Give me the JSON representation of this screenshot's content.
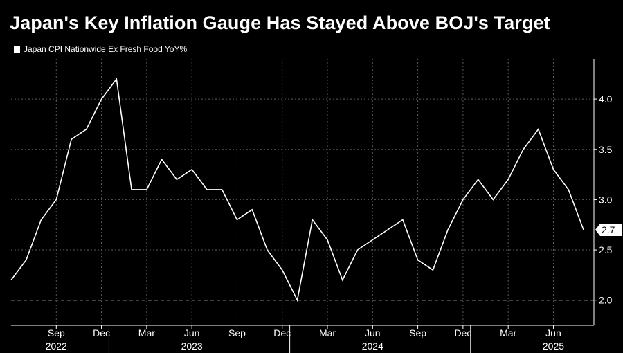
{
  "chart_data": {
    "type": "line",
    "title": "Japan's Key Inflation Gauge Has Stayed Above BOJ's Target",
    "series": [
      {
        "name": "Japan CPI Nationwide Ex Fresh Food YoY%",
        "x": [
          "2022-06",
          "2022-07",
          "2022-08",
          "2022-09",
          "2022-10",
          "2022-11",
          "2022-12",
          "2023-01",
          "2023-02",
          "2023-03",
          "2023-04",
          "2023-05",
          "2023-06",
          "2023-07",
          "2023-08",
          "2023-09",
          "2023-10",
          "2023-11",
          "2023-12",
          "2024-01",
          "2024-02",
          "2024-03",
          "2024-04",
          "2024-05",
          "2024-06",
          "2024-07",
          "2024-08",
          "2024-09",
          "2024-10",
          "2024-11",
          "2024-12",
          "2025-01",
          "2025-02",
          "2025-03",
          "2025-04",
          "2025-05",
          "2025-06",
          "2025-07",
          "2025-08"
        ],
        "values": [
          2.2,
          2.4,
          2.8,
          3.0,
          3.6,
          3.7,
          4.0,
          4.2,
          3.1,
          3.1,
          3.4,
          3.2,
          3.3,
          3.1,
          3.1,
          2.8,
          2.9,
          2.5,
          2.3,
          2.0,
          2.8,
          2.6,
          2.2,
          2.5,
          2.6,
          2.7,
          2.8,
          2.4,
          2.3,
          2.7,
          3.0,
          3.2,
          3.0,
          3.2,
          3.5,
          3.7,
          3.3,
          3.1,
          2.7
        ]
      }
    ],
    "last_value_label": "2.7",
    "reference_line": {
      "value": 2.0,
      "style": "dashed"
    },
    "ylim": [
      1.75,
      4.4
    ],
    "yticks": [
      2.0,
      2.5,
      3.0,
      3.5,
      4.0
    ],
    "ytick_labels": [
      "2.0",
      "2.5",
      "3.0",
      "3.5",
      "4.0"
    ],
    "xticks": [
      {
        "date": "2022-09",
        "label": "Sep",
        "year": "2022"
      },
      {
        "date": "2022-12",
        "label": "Dec"
      },
      {
        "date": "2023-03",
        "label": "Mar"
      },
      {
        "date": "2023-06",
        "label": "Jun",
        "year": "2023"
      },
      {
        "date": "2023-09",
        "label": "Sep"
      },
      {
        "date": "2023-12",
        "label": "Dec"
      },
      {
        "date": "2024-03",
        "label": "Mar"
      },
      {
        "date": "2024-06",
        "label": "Jun",
        "year": "2024"
      },
      {
        "date": "2024-09",
        "label": "Sep"
      },
      {
        "date": "2024-12",
        "label": "Dec"
      },
      {
        "date": "2025-03",
        "label": "Mar"
      },
      {
        "date": "2025-06",
        "label": "Jun",
        "year": "2025"
      }
    ],
    "year_boundaries": [
      "2023-01",
      "2024-01",
      "2025-01"
    ],
    "grid": true,
    "y_axis_position": "right",
    "legend_position": "top-left",
    "colors": {
      "background": "#000000",
      "line": "#ffffff",
      "grid": "#5a5a5a"
    }
  }
}
